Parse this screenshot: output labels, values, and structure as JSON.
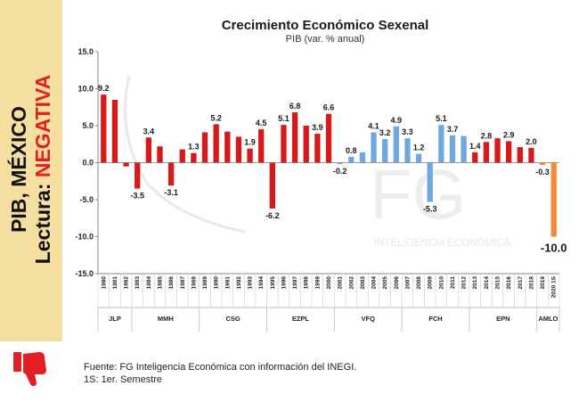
{
  "sidebar": {
    "line1": "PIB, MÉXICO",
    "line2_prefix": "Lectura: ",
    "line2_highlight": "NEGATIVA",
    "highlight_color": "#e31e24",
    "icon": "thumbs-down-icon"
  },
  "watermark": {
    "logo": "FG",
    "text": "INTELIGENCIA ECONÓMICA"
  },
  "footer": {
    "source": "Fuente: FG Inteligencia Económica con información del INEGI.",
    "note": "1S: 1er. Semestre"
  },
  "chart_data": {
    "type": "bar",
    "title": "Crecimiento Económico Sexenal",
    "subtitle": "PIB (var. % anual)",
    "ylim": [
      -15,
      15
    ],
    "yticks": [
      "15.0",
      "10.0",
      "5.0",
      "0.0",
      "-5.0",
      "-10.0",
      "-15.0"
    ],
    "categories": [
      "1980",
      "1981",
      "1982",
      "1983",
      "1984",
      "1985",
      "1986",
      "1987",
      "1988",
      "1989",
      "1990",
      "1991",
      "1992",
      "1993",
      "1994",
      "1995",
      "1996",
      "1997",
      "1998",
      "1999",
      "2000",
      "2001",
      "2002",
      "2003",
      "2004",
      "2005",
      "2006",
      "2007",
      "2008",
      "2009",
      "2010",
      "2011",
      "2012",
      "2013",
      "2014",
      "2015",
      "2016",
      "2017",
      "2018",
      "2019",
      "2020 1S"
    ],
    "values": [
      9.2,
      8.5,
      -0.5,
      -3.5,
      3.4,
      2.2,
      -3.1,
      1.8,
      1.3,
      4.1,
      5.2,
      4.2,
      3.5,
      1.9,
      4.5,
      -6.2,
      5.1,
      6.8,
      5.0,
      3.9,
      6.6,
      -0.2,
      0.8,
      1.4,
      4.1,
      3.2,
      4.9,
      3.3,
      1.2,
      -5.3,
      5.1,
      3.7,
      3.6,
      1.4,
      2.8,
      3.3,
      2.9,
      2.1,
      2.0,
      -0.3,
      -10.0
    ],
    "data_labels": [
      {
        "index": 0,
        "text": "9.2"
      },
      {
        "index": 3,
        "text": "-3.5"
      },
      {
        "index": 4,
        "text": "3.4"
      },
      {
        "index": 6,
        "text": "-3.1"
      },
      {
        "index": 8,
        "text": "1.3"
      },
      {
        "index": 10,
        "text": "5.2"
      },
      {
        "index": 13,
        "text": "1.9"
      },
      {
        "index": 14,
        "text": "4.5"
      },
      {
        "index": 15,
        "text": "-6.2"
      },
      {
        "index": 16,
        "text": "5.1"
      },
      {
        "index": 17,
        "text": "6.8"
      },
      {
        "index": 19,
        "text": "3.9"
      },
      {
        "index": 20,
        "text": "6.6"
      },
      {
        "index": 21,
        "text": "-0.2"
      },
      {
        "index": 22,
        "text": "0.8"
      },
      {
        "index": 24,
        "text": "4.1"
      },
      {
        "index": 25,
        "text": "3.2"
      },
      {
        "index": 26,
        "text": "4.9"
      },
      {
        "index": 27,
        "text": "3.3"
      },
      {
        "index": 28,
        "text": "1.2"
      },
      {
        "index": 29,
        "text": "-5.3"
      },
      {
        "index": 30,
        "text": "5.1"
      },
      {
        "index": 31,
        "text": "3.7"
      },
      {
        "index": 33,
        "text": "1.4"
      },
      {
        "index": 34,
        "text": "2.8"
      },
      {
        "index": 36,
        "text": "2.9"
      },
      {
        "index": 38,
        "text": "2.0"
      },
      {
        "index": 39,
        "text": "-0.3"
      },
      {
        "index": 40,
        "text": "-10.0"
      }
    ],
    "groups": [
      {
        "label": "JLP",
        "start": 0,
        "end": 2,
        "color": "#d7191c"
      },
      {
        "label": "MMH",
        "start": 3,
        "end": 8,
        "color": "#d7191c"
      },
      {
        "label": "CSG",
        "start": 9,
        "end": 14,
        "color": "#d7191c"
      },
      {
        "label": "EZPL",
        "start": 15,
        "end": 20,
        "color": "#d7191c"
      },
      {
        "label": "VFQ",
        "start": 21,
        "end": 26,
        "color": "#6fa8dc"
      },
      {
        "label": "FCH",
        "start": 27,
        "end": 32,
        "color": "#6fa8dc"
      },
      {
        "label": "EPN",
        "start": 33,
        "end": 38,
        "color": "#d7191c"
      },
      {
        "label": "AMLO",
        "start": 39,
        "end": 40,
        "color": "#f58a3b"
      }
    ],
    "grid": false,
    "legend": "none"
  }
}
